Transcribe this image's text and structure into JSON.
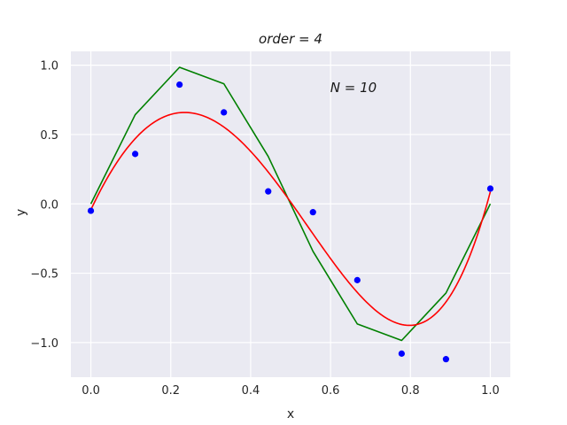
{
  "chart_data": {
    "type": "line",
    "title": "order = 4",
    "annotation": "N = 10",
    "xlabel": "x",
    "ylabel": "y",
    "xlim": [
      -0.05,
      1.05
    ],
    "ylim": [
      -1.25,
      1.1
    ],
    "xticks": [
      0.0,
      0.2,
      0.4,
      0.6,
      0.8,
      1.0
    ],
    "xtick_labels": [
      "0.0",
      "0.2",
      "0.4",
      "0.6",
      "0.8",
      "1.0"
    ],
    "yticks": [
      -1.0,
      -0.5,
      0.0,
      0.5,
      1.0
    ],
    "ytick_labels": [
      "−1.0",
      "−0.5",
      "0.0",
      "0.5",
      "1.0"
    ],
    "grid": true,
    "background": "#eaeaf2",
    "points": {
      "color": "#0000ff",
      "x": [
        0.0,
        0.111,
        0.222,
        0.333,
        0.444,
        0.556,
        0.667,
        0.778,
        0.889,
        1.0
      ],
      "y": [
        -0.05,
        0.36,
        0.86,
        0.66,
        0.09,
        -0.06,
        -0.55,
        -1.08,
        -1.12,
        0.11
      ]
    },
    "true_curve": {
      "color": "#008000",
      "x": [
        0.0,
        0.111,
        0.222,
        0.333,
        0.444,
        0.556,
        0.667,
        0.778,
        0.889,
        1.0
      ],
      "y": [
        0.0,
        0.643,
        0.985,
        0.866,
        0.342,
        -0.342,
        -0.866,
        -0.985,
        -0.643,
        0.0
      ]
    },
    "fit_curve": {
      "color": "#ff0000",
      "coeffs": [
        -0.043,
        6.13,
        -13.47,
        -1.72,
        9.19
      ]
    }
  }
}
